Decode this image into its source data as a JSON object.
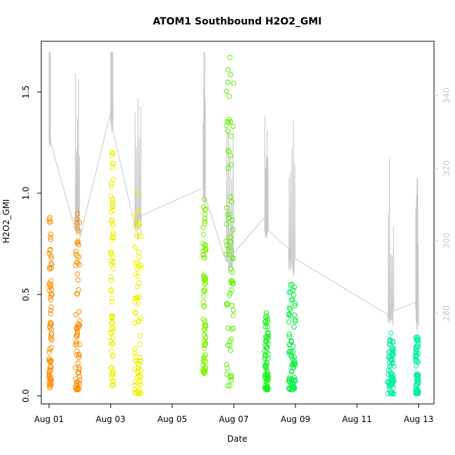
{
  "chart_data": {
    "type": "scatter",
    "title": "ATOM1 Southbound H2O2_GMI",
    "xlabel": "Date",
    "ylabel": "H2O2_GMI",
    "x_range": [
      "2016-07-31T18:00",
      "2016-08-13T12:00"
    ],
    "ylim": [
      -0.04,
      1.75
    ],
    "y2lim": [
      255,
      355
    ],
    "x_ticks": [
      {
        "date": "2016-08-01",
        "label": "Aug 01"
      },
      {
        "date": "2016-08-03",
        "label": "Aug 03"
      },
      {
        "date": "2016-08-05",
        "label": "Aug 05"
      },
      {
        "date": "2016-08-07",
        "label": "Aug 07"
      },
      {
        "date": "2016-08-09",
        "label": "Aug 09"
      },
      {
        "date": "2016-08-11",
        "label": "Aug 11"
      },
      {
        "date": "2016-08-13",
        "label": "Aug 13"
      }
    ],
    "y_ticks": [
      0.0,
      0.5,
      1.0,
      1.5
    ],
    "y_tick_labels": [
      "0.0",
      "0.5",
      "1.0",
      "1.5"
    ],
    "y2_ticks": [
      280,
      300,
      320,
      340
    ],
    "y2_tick_labels": [
      "280",
      "300",
      "320",
      "340"
    ],
    "marker": "open-circle",
    "secondary_line_color": "#c8c8c8",
    "flights": [
      {
        "date": "2016-08-01",
        "start": 0.0,
        "end": 0.05,
        "ymin": 0.04,
        "ymax": 0.88,
        "color": "#ff8c00",
        "y2base": 325
      },
      {
        "date": "2016-08-01",
        "start": 0.85,
        "end": 1.0,
        "ymin": 0.03,
        "ymax": 0.9,
        "color": "#ff8c00",
        "y2base": 300
      },
      {
        "date": "2016-08-03",
        "start": 0.0,
        "end": 0.08,
        "ymin": 0.05,
        "ymax": 1.2,
        "color": "#eef000",
        "y2base": 330
      },
      {
        "date": "2016-08-03",
        "start": 0.78,
        "end": 1.0,
        "ymin": 0.01,
        "ymax": 1.0,
        "color": "#eef000",
        "y2base": 300
      },
      {
        "date": "2016-08-06",
        "start": 0.0,
        "end": 0.08,
        "ymin": 0.11,
        "ymax": 0.97,
        "color": "#7ef000",
        "y2base": 310
      },
      {
        "date": "2016-08-06",
        "start": 0.75,
        "end": 1.0,
        "ymin": 0.05,
        "ymax": 1.67,
        "color": "#5cf000",
        "y2base": 290
      },
      {
        "date": "2016-08-08",
        "start": 0.0,
        "end": 0.12,
        "ymin": 0.03,
        "ymax": 0.41,
        "color": "#1ef020",
        "y2base": 300
      },
      {
        "date": "2016-08-08",
        "start": 0.78,
        "end": 1.0,
        "ymin": 0.03,
        "ymax": 0.55,
        "color": "#00f040",
        "y2base": 290
      },
      {
        "date": "2016-08-12",
        "start": 0.0,
        "end": 0.2,
        "ymin": 0.01,
        "ymax": 0.31,
        "color": "#00f0a0",
        "y2base": 275
      },
      {
        "date": "2016-08-12",
        "start": 0.9,
        "end": 1.0,
        "ymin": 0.01,
        "ymax": 0.29,
        "color": "#00f0a0",
        "y2base": 275
      }
    ]
  }
}
